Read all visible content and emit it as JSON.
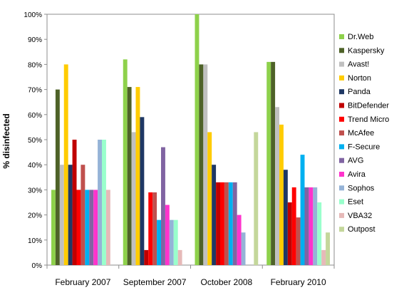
{
  "chart_data": {
    "type": "bar",
    "title": "",
    "xlabel": "",
    "ylabel": "% disinfected",
    "ylim": [
      0,
      100
    ],
    "y_ticks": [
      "0%",
      "10%",
      "20%",
      "30%",
      "40%",
      "50%",
      "60%",
      "70%",
      "80%",
      "90%",
      "100%"
    ],
    "grid": false,
    "legend_position": "right",
    "categories": [
      "February 2007",
      "September 2007",
      "October 2008",
      "February 2010"
    ],
    "series": [
      {
        "name": "Dr.Web",
        "color": "#8ed14b",
        "values": [
          30,
          82,
          100,
          81
        ]
      },
      {
        "name": "Kaspersky",
        "color": "#4e6228",
        "values": [
          70,
          71,
          80,
          81
        ]
      },
      {
        "name": "Avast!",
        "color": "#c0c0c0",
        "values": [
          40,
          53,
          80,
          63
        ]
      },
      {
        "name": "Norton",
        "color": "#ffcc00",
        "values": [
          80,
          71,
          53,
          56
        ]
      },
      {
        "name": "Panda",
        "color": "#1f3864",
        "values": [
          40,
          59,
          40,
          38
        ]
      },
      {
        "name": "BitDefender",
        "color": "#c00000",
        "values": [
          50,
          6,
          33,
          25
        ]
      },
      {
        "name": "Trend Micro",
        "color": "#ff0000",
        "values": [
          30,
          29,
          33,
          31
        ]
      },
      {
        "name": "McAfee",
        "color": "#c0504d",
        "values": [
          40,
          29,
          33,
          19
        ]
      },
      {
        "name": "F-Secure",
        "color": "#00b0f0",
        "values": [
          30,
          18,
          33,
          44
        ]
      },
      {
        "name": "AVG",
        "color": "#8064a2",
        "values": [
          30,
          47,
          33,
          31
        ]
      },
      {
        "name": "Avira",
        "color": "#ff33cc",
        "values": [
          30,
          24,
          20,
          31
        ]
      },
      {
        "name": "Sophos",
        "color": "#95b3d7",
        "values": [
          50,
          18,
          13,
          31
        ]
      },
      {
        "name": "Eset",
        "color": "#99ffcc",
        "values": [
          50,
          18,
          0,
          25
        ]
      },
      {
        "name": "VBA32",
        "color": "#e6b9b8",
        "values": [
          30,
          6,
          0,
          6
        ]
      },
      {
        "name": "Outpost",
        "color": "#c4d79b",
        "values": [
          0,
          0,
          53,
          13
        ]
      }
    ]
  }
}
